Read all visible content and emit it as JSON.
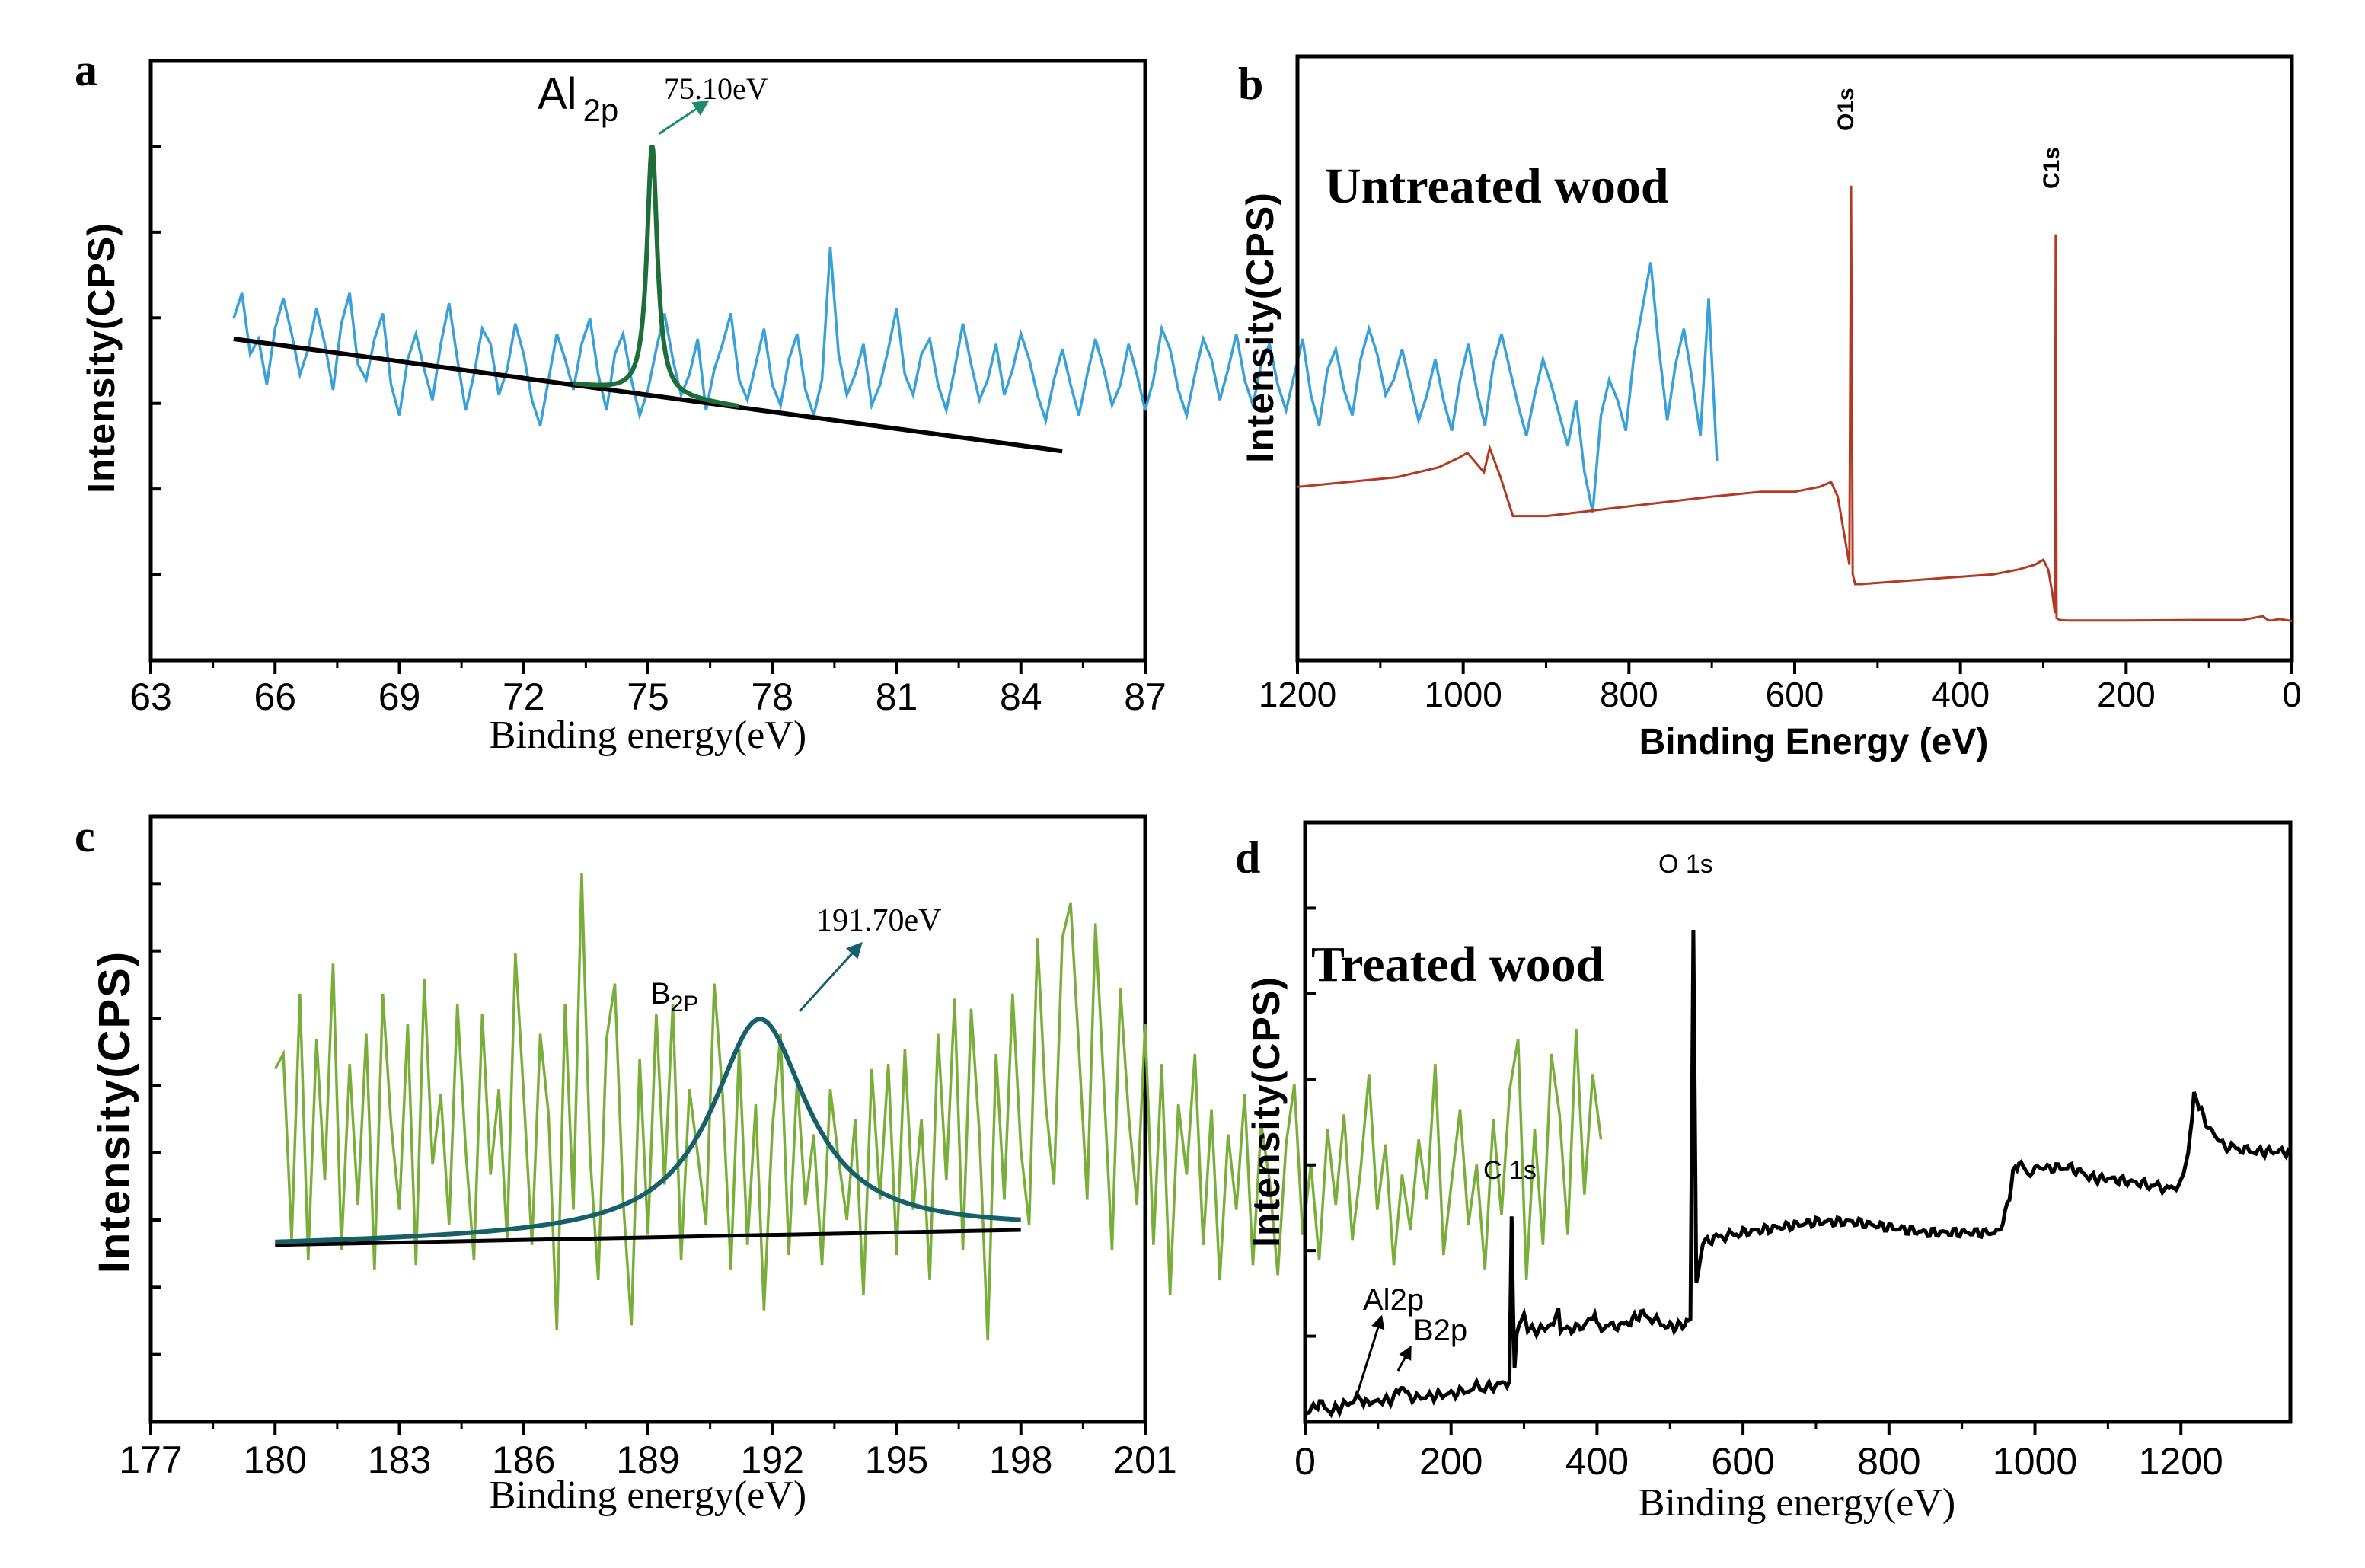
{
  "colors": {
    "a_raw": "#3aa0d8",
    "a_fit": "#1e6e3a",
    "b_line": "#b23a23",
    "c_raw": "#7aae3a",
    "c_fit": "#17606a",
    "baseline": "#000000",
    "d_line": "#000000"
  },
  "chart_data": [
    {
      "panel": "a",
      "type": "line",
      "xlabel": "Binding energy(eV)",
      "ylabel": "Intensity(CPS)",
      "xlim": [
        63,
        87
      ],
      "ylim": [
        0,
        10
      ],
      "xticks": [
        "63",
        "66",
        "69",
        "72",
        "75",
        "78",
        "81",
        "84",
        "87"
      ],
      "peak_label": "Al",
      "peak_sub": "2p",
      "peak_value": "75.10eV",
      "peak_center": 75.1,
      "baseline": {
        "x": [
          65,
          85
        ],
        "y": [
          5.0,
          2.8
        ]
      },
      "raw_series": {
        "name": "Al 2p raw",
        "x_start": 65,
        "x_step": 0.2,
        "y": [
          5.4,
          5.9,
          4.7,
          5.0,
          4.1,
          5.2,
          5.8,
          5.1,
          4.3,
          4.8,
          5.6,
          4.9,
          4.0,
          5.3,
          5.9,
          4.5,
          4.2,
          5.0,
          5.5,
          4.1,
          3.5,
          4.6,
          5.1,
          4.4,
          3.8,
          4.9,
          5.7,
          4.6,
          3.6,
          4.3,
          5.2,
          4.9,
          3.9,
          4.4,
          5.3,
          4.7,
          3.8,
          3.3,
          4.2,
          5.1,
          4.6,
          4.0,
          4.9,
          5.4,
          4.3,
          3.6,
          4.7,
          5.1,
          4.2,
          3.5,
          4.0,
          4.8,
          5.5,
          4.6,
          3.9,
          4.3,
          5.0,
          3.6,
          4.4,
          4.9,
          5.5,
          4.2,
          3.8,
          4.5,
          5.2,
          4.1,
          3.7,
          4.6,
          5.1,
          4.0,
          3.5,
          4.2,
          6.8,
          4.7,
          3.9,
          4.3,
          4.9,
          3.7,
          4.1,
          4.8,
          5.6,
          4.3,
          3.9,
          4.7,
          5.0,
          4.1,
          3.6,
          4.4,
          5.3,
          4.5,
          3.8,
          4.2,
          4.9,
          3.9,
          4.4,
          5.1,
          4.6,
          3.9,
          3.4,
          4.2,
          4.8,
          4.1,
          3.5,
          4.3,
          5.0,
          4.4,
          3.7,
          4.1,
          4.9,
          4.3,
          3.6,
          4.2,
          5.2,
          4.8,
          4.0,
          3.5,
          4.3,
          5.0,
          4.6,
          3.8,
          4.4,
          5.1,
          4.2,
          3.7,
          4.5,
          4.9,
          4.1,
          3.6,
          4.3,
          5.0,
          3.9,
          3.3,
          4.4,
          4.8,
          4.0,
          3.5,
          4.6,
          5.2,
          4.7,
          3.9,
          4.2,
          4.8,
          4.1,
          3.4,
          3.9,
          4.6,
          3.8,
          3.2,
          4.2,
          4.9,
          4.0,
          3.3,
          4.5,
          5.1,
          4.4,
          3.7,
          3.1,
          3.9,
          4.6,
          4.1,
          3.5,
          2.9,
          3.8,
          2.4,
          1.6,
          3.5,
          4.2,
          3.8,
          3.2,
          4.7,
          5.6,
          6.5,
          4.8,
          3.4,
          4.5,
          5.2,
          4.2,
          3.1,
          5.8,
          2.6
        ]
      },
      "fit_series": {
        "name": "Al 2p fit",
        "amplitude": 4.9,
        "hwhm": 0.15
      }
    },
    {
      "panel": "b",
      "type": "line",
      "label": "Untreated wood",
      "xlabel": "Binding Energy (eV)",
      "ylabel": "Intensity(CPS)",
      "xlim": [
        1200,
        0
      ],
      "ylim": [
        0,
        100
      ],
      "xticks": [
        "1200",
        "1000",
        "800",
        "600",
        "400",
        "200",
        "0"
      ],
      "peaks": [
        {
          "label": "O1s",
          "x": 532,
          "y": 90
        },
        {
          "label": "C1s",
          "x": 285,
          "y": 80
        }
      ],
      "series": [
        {
          "name": "survey",
          "x": [
            1200,
            1140,
            1080,
            1030,
            1005,
            995,
            985,
            975,
            968,
            955,
            940,
            900,
            800,
            700,
            640,
            600,
            570,
            556,
            548,
            542,
            537,
            534,
            532,
            530,
            527,
            520,
            480,
            440,
            400,
            360,
            330,
            310,
            300,
            294,
            289,
            286,
            285,
            284,
            282,
            280,
            270,
            200,
            120,
            60,
            35,
            29,
            25,
            15,
            0
          ],
          "y": [
            28,
            29,
            30,
            32,
            34,
            35,
            33,
            31,
            36,
            30,
            22,
            22,
            24,
            26,
            27,
            27,
            28,
            29,
            26,
            20,
            15,
            12,
            90,
            10,
            8,
            8,
            8.5,
            9,
            9.5,
            10,
            11,
            12,
            13,
            11,
            6,
            2,
            80,
            1,
            0.8,
            0.6,
            0.5,
            0.5,
            0.6,
            0.6,
            1.4,
            0.6,
            0.5,
            0.8,
            0.4
          ]
        }
      ]
    },
    {
      "panel": "c",
      "type": "line",
      "xlabel": "Binding energy(eV)",
      "ylabel": "Intensity(CPS)",
      "xlim": [
        177,
        201
      ],
      "ylim": [
        0,
        10
      ],
      "xticks": [
        "177",
        "180",
        "183",
        "186",
        "189",
        "192",
        "195",
        "198",
        "201"
      ],
      "peak_label": "B",
      "peak_sub": "2P",
      "peak_value": "191.70eV",
      "peak_center": 191.7,
      "baseline": {
        "x": [
          180,
          198
        ],
        "y": [
          2.2,
          2.5
        ]
      },
      "raw_series": {
        "name": "B 2p raw",
        "x_start": 180,
        "x_step": 0.2,
        "y": [
          5.7,
          6.0,
          2.3,
          7.2,
          1.9,
          6.3,
          3.5,
          7.8,
          2.1,
          5.8,
          3.0,
          6.4,
          1.7,
          7.2,
          4.6,
          2.9,
          6.6,
          1.8,
          7.5,
          3.8,
          5.2,
          2.6,
          7.0,
          4.1,
          1.9,
          6.8,
          3.6,
          5.3,
          2.3,
          8.0,
          5.2,
          2.2,
          6.4,
          4.8,
          0.5,
          7.0,
          2.9,
          9.6,
          4.0,
          1.5,
          6.3,
          7.4,
          3.1,
          0.6,
          5.9,
          2.4,
          6.8,
          3.4,
          7.0,
          1.9,
          5.3,
          4.0,
          2.6,
          7.4,
          5.2,
          1.7,
          6.1,
          2.2,
          5.0,
          0.9,
          4.5,
          6.4,
          2.0,
          5.5,
          3.0,
          4.4,
          1.8,
          5.3,
          3.9,
          2.7,
          4.7,
          1.2,
          5.7,
          3.1,
          5.8,
          2.0,
          6.1,
          2.9,
          4.7,
          1.5,
          6.4,
          3.5,
          7.1,
          2.1,
          6.9,
          4.4,
          0.3,
          6.0,
          3.1,
          7.2,
          4.1,
          2.6,
          8.3,
          5.0,
          3.4,
          8.3,
          9.0,
          6.1,
          3.1,
          8.6,
          5.4,
          2.1,
          7.3,
          4.8,
          3.0,
          6.6,
          2.2,
          5.8,
          1.2,
          5.0,
          3.6,
          6.0,
          2.2,
          4.9,
          1.5,
          4.4,
          2.9,
          5.2,
          1.8,
          4.6,
          3.5,
          1.6,
          4.2,
          5.4,
          2.4,
          3.8,
          1.9,
          4.5,
          3.0,
          4.8,
          2.3,
          3.7,
          5.6,
          2.9,
          4.2,
          1.8,
          3.6,
          2.5,
          4.3,
          3.1,
          5.8,
          2.0,
          3.5,
          4.9,
          2.6,
          3.8,
          1.7,
          4.7,
          2.8,
          5.3,
          6.3,
          1.5,
          4.5,
          2.2,
          6.0,
          4.8,
          2.4,
          6.5,
          3.2,
          5.6,
          4.3
        ]
      },
      "fit_series": {
        "name": "B 2p fit",
        "amplitude": 4.3,
        "hwhm": 1.4
      }
    },
    {
      "panel": "d",
      "type": "line",
      "label": "Treated wood",
      "xlabel": "Binding energy(eV)",
      "ylabel": "Intensity(CPS)",
      "xlim": [
        0,
        1350
      ],
      "ylim": [
        0,
        100
      ],
      "xticks": [
        "0",
        "200",
        "400",
        "600",
        "800",
        "1000",
        "1200"
      ],
      "peaks": [
        {
          "label": "O 1s",
          "x": 532,
          "y": 90
        },
        {
          "label": "C 1s",
          "x": 285,
          "y": 37
        },
        {
          "label": "Al2p",
          "x": 74,
          "y": 3
        },
        {
          "label": "B2p",
          "x": 120,
          "y": 5
        }
      ],
      "series": [
        {
          "name": "survey",
          "x": [
            0,
            20,
            30,
            50,
            74,
            80,
            100,
            120,
            125,
            150,
            200,
            230,
            235,
            240,
            270,
            280,
            283,
            285,
            287,
            290,
            300,
            305,
            320,
            340,
            347,
            350,
            380,
            397,
            400,
            440,
            460,
            500,
            520,
            528,
            532,
            536,
            545,
            560,
            600,
            650,
            700,
            750,
            800,
            850,
            900,
            950,
            965,
            970,
            978,
            990,
            1000,
            1020,
            1050,
            1080,
            1100,
            1150,
            1190,
            1200,
            1210,
            1218,
            1225,
            1240,
            1260,
            1300,
            1350
          ],
          "y": [
            0.5,
            2.5,
            0.8,
            1.8,
            3.5,
            2.5,
            2.8,
            3.2,
            5.5,
            3.4,
            4.2,
            5,
            6.5,
            5,
            6,
            6.5,
            37,
            20,
            9,
            15,
            19,
            16,
            16,
            17,
            20,
            16,
            16.5,
            19,
            16.5,
            17,
            19,
            16.5,
            17,
            18,
            90,
            25,
            32,
            33,
            34,
            35,
            36,
            36,
            35,
            34,
            34,
            34,
            40,
            45,
            47,
            45,
            46,
            46,
            46,
            44,
            44,
            43,
            42,
            44,
            48,
            60,
            57,
            53,
            50,
            49,
            49
          ]
        }
      ]
    }
  ]
}
